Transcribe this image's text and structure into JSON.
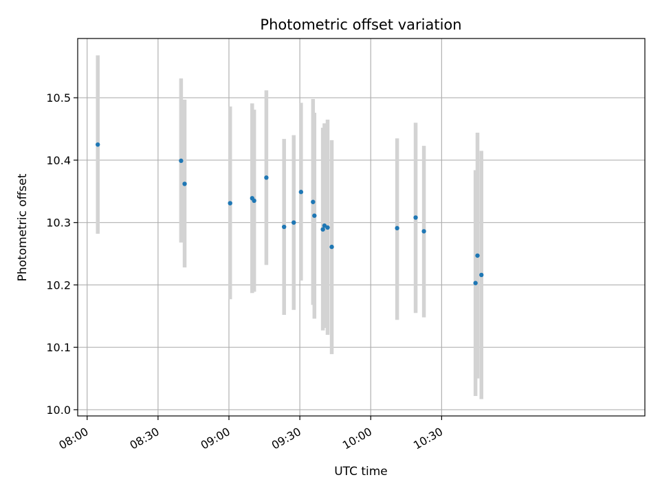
{
  "chart_data": {
    "type": "scatter",
    "title": "Photometric offset variation",
    "xlabel": "UTC time",
    "ylabel": "Photometric offset",
    "grid": true,
    "xlim": [
      "07:56",
      "11:56"
    ],
    "ylim": [
      9.99,
      10.595
    ],
    "x_ticks": [
      "08:00",
      "08:30",
      "09:00",
      "09:30",
      "10:00",
      "10:30"
    ],
    "y_ticks": [
      "10.0",
      "10.1",
      "10.2",
      "10.3",
      "10.4",
      "10.5"
    ],
    "colors": {
      "point": "#1f77b4",
      "errorbar": "#d3d3d3",
      "grid": "#b0b0b0"
    },
    "points": [
      {
        "x": "08:04:30",
        "y": 10.425,
        "y_low": 10.282,
        "y_high": 10.568
      },
      {
        "x": "08:39:45",
        "y": 10.399,
        "y_low": 10.268,
        "y_high": 10.531
      },
      {
        "x": "08:41:15",
        "y": 10.362,
        "y_low": 10.228,
        "y_high": 10.497
      },
      {
        "x": "09:00:30",
        "y": 10.331,
        "y_low": 10.177,
        "y_high": 10.486
      },
      {
        "x": "09:09:50",
        "y": 10.339,
        "y_low": 10.187,
        "y_high": 10.491
      },
      {
        "x": "09:10:40",
        "y": 10.335,
        "y_low": 10.189,
        "y_high": 10.481
      },
      {
        "x": "09:15:50",
        "y": 10.372,
        "y_low": 10.232,
        "y_high": 10.512
      },
      {
        "x": "09:23:20",
        "y": 10.293,
        "y_low": 10.152,
        "y_high": 10.434
      },
      {
        "x": "09:27:25",
        "y": 10.3,
        "y_low": 10.16,
        "y_high": 10.44
      },
      {
        "x": "09:30:30",
        "y": 10.349,
        "y_low": 10.207,
        "y_high": 10.492
      },
      {
        "x": "09:35:35",
        "y": 10.333,
        "y_low": 10.168,
        "y_high": 10.498
      },
      {
        "x": "09:36:10",
        "y": 10.311,
        "y_low": 10.146,
        "y_high": 10.476
      },
      {
        "x": "09:39:45",
        "y": 10.289,
        "y_low": 10.127,
        "y_high": 10.452
      },
      {
        "x": "09:40:25",
        "y": 10.295,
        "y_low": 10.131,
        "y_high": 10.459
      },
      {
        "x": "09:41:45",
        "y": 10.292,
        "y_low": 10.12,
        "y_high": 10.465
      },
      {
        "x": "09:43:30",
        "y": 10.261,
        "y_low": 10.089,
        "y_high": 10.432
      },
      {
        "x": "10:11:10",
        "y": 10.291,
        "y_low": 10.144,
        "y_high": 10.435
      },
      {
        "x": "10:19:00",
        "y": 10.308,
        "y_low": 10.155,
        "y_high": 10.46
      },
      {
        "x": "10:22:30",
        "y": 10.286,
        "y_low": 10.148,
        "y_high": 10.423
      },
      {
        "x": "10:44:20",
        "y": 10.203,
        "y_low": 10.022,
        "y_high": 10.384
      },
      {
        "x": "10:45:10",
        "y": 10.247,
        "y_low": 10.05,
        "y_high": 10.444
      },
      {
        "x": "10:46:50",
        "y": 10.216,
        "y_low": 10.017,
        "y_high": 10.415
      }
    ]
  }
}
